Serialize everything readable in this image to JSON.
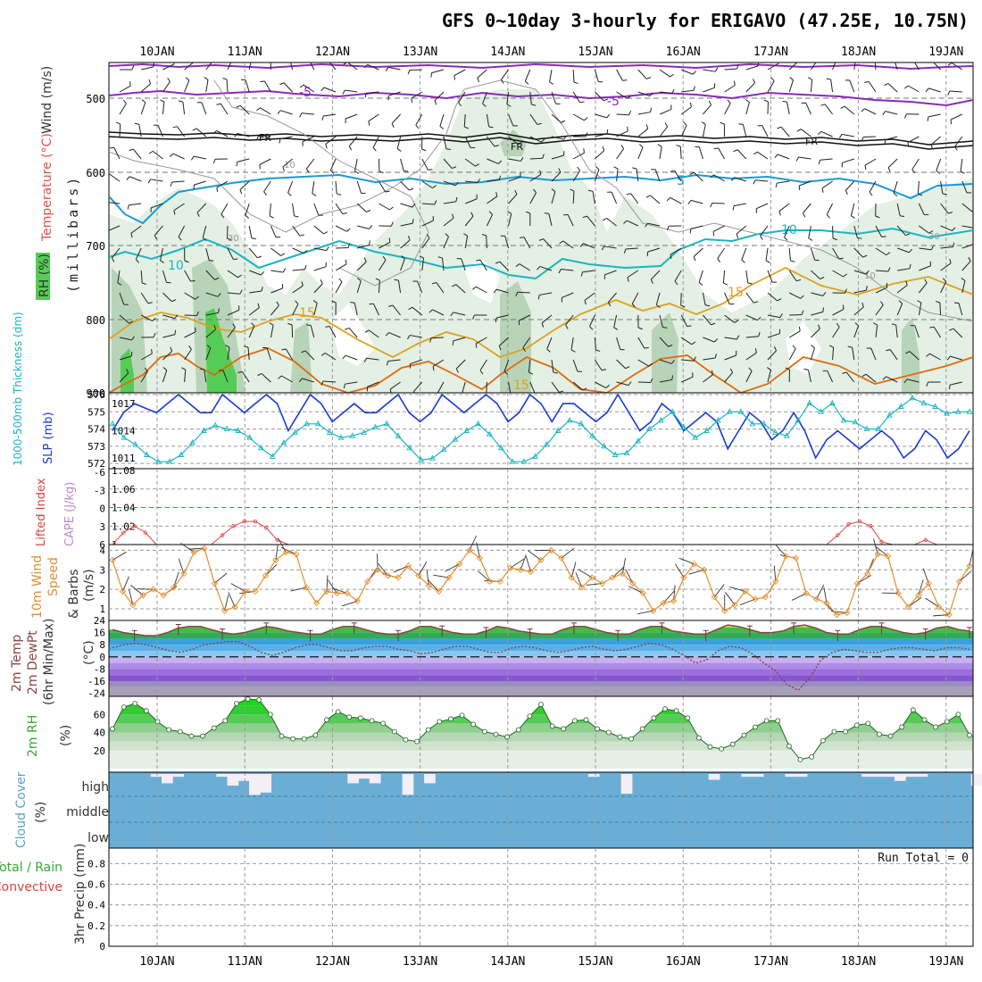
{
  "title": "GFS 0~10day 3-hourly for ERIGAVO (47.25E, 10.75N)",
  "colors": {
    "grid": "#999999",
    "rh_fill_light": "#e3f0e3",
    "rh_fill_mid": "#b8d4b8",
    "rh_fill_dark": "#7ea67e",
    "rh_fill_green": "#55cc55",
    "temp_neg5": "#8a2bb8",
    "temp_fr": "#111111",
    "temp_5": "#1a9ad6",
    "temp_10": "#19b5c2",
    "temp_15": "#e0a020",
    "temp_20": "#e06a10",
    "slp": "#1a3bd0",
    "thickness": "#19b5c2",
    "cape": "#e04040",
    "wind10": "#e09030",
    "t2m_fill": "#33bb33",
    "dewpt": "#884444",
    "rh2m": "#33cc33",
    "cloud_bg": "#6aaed6",
    "cloud_bar": "#f4eef6"
  },
  "days": [
    "10JAN",
    "11JAN",
    "12JAN",
    "13JAN",
    "14JAN",
    "15JAN",
    "16JAN",
    "17JAN",
    "18JAN",
    "19JAN"
  ],
  "panels": {
    "upper": {
      "labels": {
        "wind": "Wind (m/s)",
        "temperature": "Temperature (°C)",
        "rh": "RH (%)",
        "pressure": "(millibars)"
      },
      "yticks": [
        "500",
        "600",
        "700",
        "800",
        "900"
      ],
      "contour_labels": [
        "-5",
        "-5",
        "FR",
        "FR",
        "FR",
        "5",
        "10",
        "10",
        "15",
        "15",
        "15",
        "10",
        "30",
        "30",
        "10"
      ]
    },
    "slp": {
      "labels": {
        "thickness": "1000-500mb Thickness (dm)",
        "slp": "SLP (mb)"
      },
      "left_ticks": [
        "576",
        "575",
        "574",
        "573",
        "572"
      ],
      "right_ticks": [
        "1017",
        "1014",
        "1011"
      ]
    },
    "cape": {
      "labels": {
        "li": "Lifted Index",
        "cape": "CAPE (J/kg)"
      },
      "left_ticks": [
        "-6",
        "-3",
        "0",
        "3",
        "6"
      ],
      "right_ticks": [
        "1.08",
        "1.06",
        "1.04",
        "1.02",
        "1"
      ]
    },
    "wind10": {
      "labels": {
        "line1": "10m Wind",
        "line2": "Speed",
        "line3": "& Barbs",
        "unit": "(m/s)"
      },
      "ticks": [
        "4",
        "3",
        "2",
        "1"
      ]
    },
    "temp2m": {
      "labels": {
        "line1": "2m Temp",
        "line2": "2m DewPt",
        "line3": "(6hr Min/Max)",
        "unit": "(°C)"
      },
      "ticks": [
        "24",
        "16",
        "8",
        "0",
        "-8",
        "-16",
        "-24"
      ]
    },
    "rh2m": {
      "labels": {
        "line1": "2m RH",
        "unit": "(%)"
      },
      "ticks": [
        "60",
        "40",
        "20"
      ]
    },
    "cloud": {
      "labels": {
        "line1": "Cloud Cover",
        "unit": "(%)"
      },
      "levels": [
        "high",
        "middle",
        "low"
      ]
    },
    "precip": {
      "labels": {
        "line1": "Total / Rain",
        "line2": "Convective",
        "line3": "3hr Precip (mm)"
      },
      "ticks": [
        "0.8",
        "0.6",
        "0.4",
        "0.2",
        "0"
      ],
      "run_total": "Run Total = 0"
    }
  },
  "chart_data": [
    {
      "type": "line",
      "title": "1000-500mb Thickness (dm) & SLP (mb)",
      "x_unit": "3-hourly steps from 09JAN 12Z",
      "series": [
        {
          "name": "SLP (mb)",
          "axis": "right",
          "ylim": [
            1010,
            1018
          ],
          "values": [
            1014,
            1016,
            1017,
            1016.5,
            1016,
            1017,
            1018,
            1017,
            1016,
            1016,
            1018,
            1017,
            1016,
            1017,
            1018,
            1017,
            1014,
            1016,
            1018,
            1017,
            1015,
            1016,
            1017,
            1016,
            1016,
            1017,
            1018,
            1016,
            1015,
            1016,
            1018,
            1017,
            1016,
            1017,
            1018,
            1017,
            1015,
            1016,
            1018,
            1017,
            1015,
            1017,
            1017,
            1016,
            1015,
            1016,
            1018,
            1016,
            1014,
            1015,
            1017,
            1016,
            1014,
            1015,
            1016,
            1015,
            1012,
            1014,
            1016,
            1015,
            1013,
            1014,
            1016,
            1014,
            1011,
            1013,
            1014,
            1013,
            1012,
            1013,
            1014,
            1013,
            1011,
            1012,
            1014,
            1013,
            1011,
            1012,
            1014
          ]
        },
        {
          "name": "1000-500mb Thickness (dm)",
          "axis": "left",
          "ylim": [
            571.8,
            576
          ],
          "values": [
            574.3,
            573.5,
            573.1,
            572.5,
            572.1,
            572.1,
            572.5,
            573.2,
            573.9,
            574.2,
            574,
            573.9,
            573.5,
            572.9,
            572.4,
            573.2,
            573.8,
            574.3,
            574.3,
            573.8,
            573.5,
            573.6,
            573.8,
            574.1,
            574.3,
            573.6,
            572.9,
            572.2,
            572.3,
            572.8,
            573.4,
            573.9,
            574.3,
            573.7,
            572.9,
            572.1,
            572.1,
            572.4,
            573.1,
            573.9,
            574.5,
            574.3,
            573.6,
            573,
            572.5,
            572.6,
            573.3,
            574,
            574.5,
            575,
            574.1,
            573.5,
            573.9,
            574.5,
            575,
            575,
            574.3,
            574.3,
            573.8,
            573.6,
            574.5,
            575.5,
            575,
            575.5,
            574.5,
            574.4,
            574,
            574,
            574.8,
            575.3,
            575.8,
            575.5,
            575.3,
            574.9,
            575,
            575
          ]
        }
      ],
      "xlabel": "",
      "ylabel": ""
    },
    {
      "type": "line",
      "title": "Lifted Index / CAPE (J/kg)",
      "series": [
        {
          "name": "CAPE (J/kg)",
          "ylim": [
            1,
            1.08
          ],
          "values": [
            1,
            1.013,
            1.02,
            1.013,
            1,
            1,
            1,
            1,
            1,
            1,
            1.01,
            1.02,
            1.025,
            1.025,
            1.018,
            1.005,
            1,
            1,
            1,
            1,
            1,
            1,
            1,
            1,
            1,
            1,
            1,
            1,
            1,
            1,
            1,
            1,
            1,
            1,
            1,
            1,
            1,
            1,
            1,
            1,
            1,
            1,
            1,
            1,
            1,
            1,
            1,
            1,
            1,
            1,
            1,
            1,
            1,
            1,
            1,
            1,
            1,
            1,
            1,
            1,
            1,
            1,
            1,
            1,
            1,
            1,
            1.01,
            1.022,
            1.025,
            1.02,
            1.003,
            1,
            1,
            1,
            1.005,
            1,
            1,
            1,
            1
          ]
        }
      ],
      "reference_line": {
        "name": "Lifted Index 0",
        "value": 0
      }
    },
    {
      "type": "line",
      "title": "10m Wind Speed & Barbs (m/s)",
      "series": [
        {
          "name": "Wind speed (m/s)",
          "ylim": [
            0.5,
            4.2
          ],
          "values": [
            3.5,
            1.9,
            1.2,
            1.7,
            2,
            1.7,
            2.1,
            2.8,
            3.9,
            4.1,
            2.3,
            0.9,
            1.1,
            1.9,
            1.9,
            2.7,
            3.5,
            3.9,
            3.8,
            2.1,
            1.3,
            1.9,
            1.8,
            1.8,
            1.4,
            2.4,
            3,
            2.7,
            2.6,
            3.2,
            2.7,
            2.2,
            1.9,
            2.6,
            3.3,
            4,
            3.6,
            2.4,
            2.4,
            3.1,
            3,
            2.9,
            3.5,
            4,
            3.6,
            2.6,
            2.1,
            2.6,
            2.3,
            2.6,
            2.8,
            2.3,
            1.8,
            0.9,
            1.3,
            1.4,
            2.6,
            3.3,
            3,
            1.6,
            0.9,
            1.2,
            1.9,
            1.5,
            1.6,
            2.4,
            3.7,
            3.6,
            1.8,
            1.5,
            1.3,
            0.7,
            0.8,
            2.3,
            2.8,
            3.8,
            3.7,
            1.8,
            1.1,
            1.7,
            2.3,
            1.1,
            0.7,
            2.4,
            3.2
          ]
        }
      ]
    },
    {
      "type": "line",
      "title": "2m Temp / 2m DewPt (°C)",
      "series": [
        {
          "name": "2m Temp (°C)",
          "ylim": [
            -26,
            24
          ],
          "values": [
            18,
            16,
            15,
            14,
            14,
            16,
            19,
            20,
            20,
            18,
            16,
            15,
            16,
            18,
            20,
            19,
            17,
            16,
            15,
            15,
            18,
            20,
            20,
            18,
            16,
            15,
            15,
            17,
            20,
            20,
            18,
            16,
            15,
            15,
            17,
            20,
            19,
            17,
            16,
            15,
            15,
            18,
            20,
            20,
            18,
            16,
            15,
            15,
            18,
            20,
            20,
            17,
            16,
            15,
            15,
            18,
            21,
            20,
            18,
            16,
            16,
            17,
            20,
            21,
            19,
            16,
            15,
            15,
            18,
            20,
            20,
            18,
            16,
            15,
            16,
            19,
            20,
            18,
            17
          ]
        },
        {
          "name": "2m DewPt (°C)",
          "ylim": [
            -26,
            24
          ],
          "values": [
            6,
            8,
            9,
            8,
            6,
            4,
            3,
            5,
            8,
            9,
            10,
            10,
            7,
            3,
            1,
            3,
            6,
            8,
            8,
            6,
            4,
            4,
            6,
            7,
            7,
            5,
            4,
            2,
            3,
            5,
            7,
            7,
            5,
            3,
            3,
            6,
            7,
            6,
            4,
            3,
            4,
            6,
            7,
            5,
            4,
            5,
            7,
            9,
            8,
            5,
            1,
            -4,
            -2,
            4,
            7,
            6,
            2,
            -4,
            -9,
            -18,
            -22,
            -14,
            -2,
            3,
            5,
            4,
            3,
            3,
            5,
            6,
            6,
            5,
            4,
            6,
            6,
            5
          ]
        }
      ]
    },
    {
      "type": "area",
      "title": "2m RH (%)",
      "series": [
        {
          "name": "2m RH (%)",
          "ylim": [
            0,
            80
          ],
          "values": [
            44,
            68,
            72,
            64,
            52,
            43,
            41,
            36,
            36,
            45,
            53,
            72,
            77,
            76,
            60,
            36,
            33,
            33,
            37,
            54,
            63,
            57,
            56,
            53,
            50,
            41,
            32,
            30,
            43,
            52,
            55,
            59,
            49,
            41,
            38,
            35,
            43,
            58,
            71,
            47,
            44,
            53,
            54,
            44,
            40,
            35,
            33,
            44,
            56,
            66,
            64,
            56,
            34,
            24,
            22,
            27,
            37,
            46,
            53,
            53,
            25,
            10,
            13,
            31,
            41,
            41,
            48,
            50,
            38,
            36,
            46,
            65,
            54,
            46,
            52,
            60,
            37
          ]
        }
      ]
    },
    {
      "type": "bar",
      "title": "Cloud Cover (%) — high cloud",
      "series": [
        {
          "name": "high cloud (%)",
          "values": [
            0,
            0,
            0,
            12,
            40,
            12,
            0,
            0,
            0,
            12,
            50,
            30,
            90,
            80,
            0,
            0,
            0,
            0,
            0,
            0,
            0,
            40,
            20,
            40,
            0,
            0,
            90,
            0,
            40,
            0,
            0,
            0,
            0,
            0,
            0,
            0,
            0,
            0,
            0,
            0,
            0,
            0,
            0,
            12,
            0,
            0,
            85,
            0,
            0,
            0,
            0,
            0,
            0,
            0,
            25,
            0,
            0,
            12,
            12,
            0,
            0,
            12,
            12,
            0,
            0,
            0,
            0,
            0,
            12,
            12,
            12,
            30,
            12,
            12,
            0,
            0,
            0,
            0,
            50
          ]
        }
      ]
    },
    {
      "type": "bar",
      "title": "3hr Precip (mm)",
      "ylim": [
        0,
        0.95
      ],
      "series": [
        {
          "name": "Total / Rain",
          "values": []
        },
        {
          "name": "Convective",
          "values": []
        }
      ],
      "run_total": 0
    }
  ]
}
